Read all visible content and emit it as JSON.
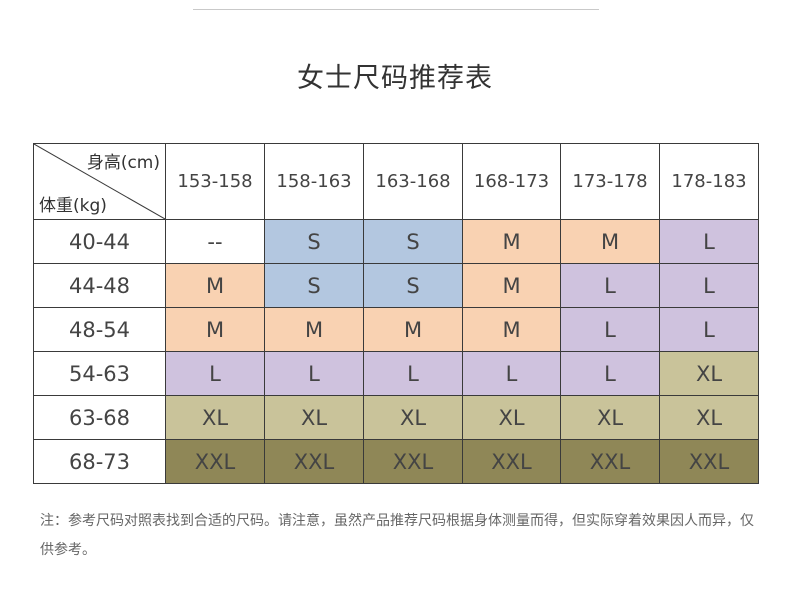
{
  "title": "女士尺码推荐表",
  "corner": {
    "height_label": "身高(cm)",
    "weight_label": "体重(kg)"
  },
  "height_columns": [
    "153-158",
    "158-163",
    "163-168",
    "168-173",
    "173-178",
    "178-183"
  ],
  "rows": [
    {
      "weight": "40-44",
      "sizes": [
        "--",
        "S",
        "S",
        "M",
        "M",
        "L"
      ]
    },
    {
      "weight": "44-48",
      "sizes": [
        "M",
        "S",
        "S",
        "M",
        "L",
        "L"
      ]
    },
    {
      "weight": "48-54",
      "sizes": [
        "M",
        "M",
        "M",
        "M",
        "L",
        "L"
      ]
    },
    {
      "weight": "54-63",
      "sizes": [
        "L",
        "L",
        "L",
        "L",
        "L",
        "XL"
      ]
    },
    {
      "weight": "63-68",
      "sizes": [
        "XL",
        "XL",
        "XL",
        "XL",
        "XL",
        "XL"
      ]
    },
    {
      "weight": "68-73",
      "sizes": [
        "XXL",
        "XXL",
        "XXL",
        "XXL",
        "XXL",
        "XXL"
      ]
    }
  ],
  "size_colors": {
    "--": "#ffffff",
    "S": "#b3c7e0",
    "M": "#f9d2b2",
    "L": "#cfc2de",
    "XL": "#c9c39a",
    "XXL": "#8f8757"
  },
  "note": "注：参考尺码对照表找到合适的尺码。请注意，虽然产品推荐尺码根据身体测量而得，但实际穿着效果因人而异，仅供参考。"
}
